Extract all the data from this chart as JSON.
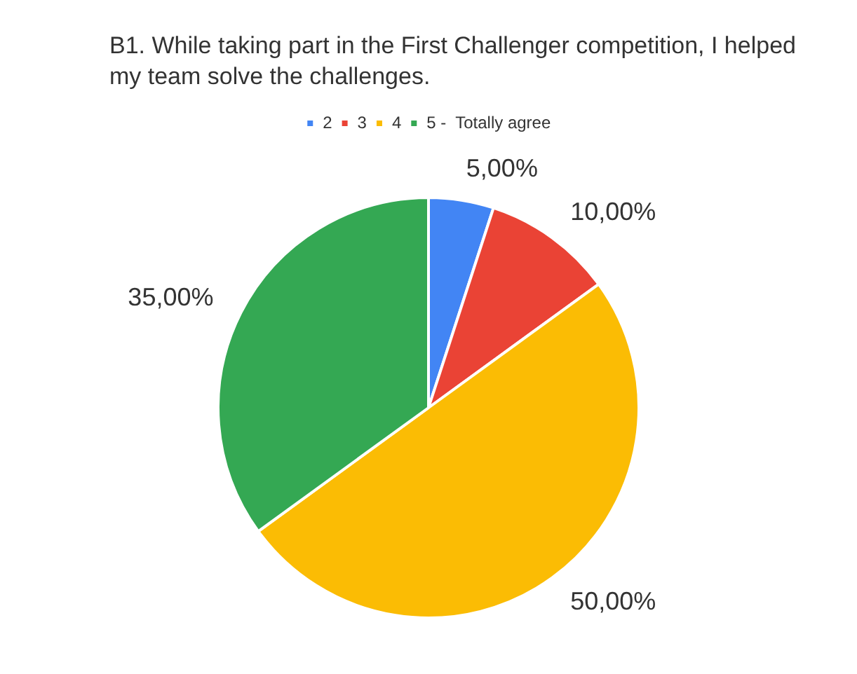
{
  "chart_data": {
    "type": "pie",
    "title": "B1. While  taking part in the First Challenger competition, I helped my team solve the challenges.",
    "categories": [
      "2",
      "3",
      "4",
      "5 -  Totally agree"
    ],
    "values": [
      5,
      10,
      50,
      35
    ],
    "colors": [
      "#4285f4",
      "#ea4335",
      "#fbbc04",
      "#34a853"
    ],
    "value_labels": [
      "5,00%",
      "10,00%",
      "50,00%",
      "35,00%"
    ],
    "legend": "top"
  }
}
